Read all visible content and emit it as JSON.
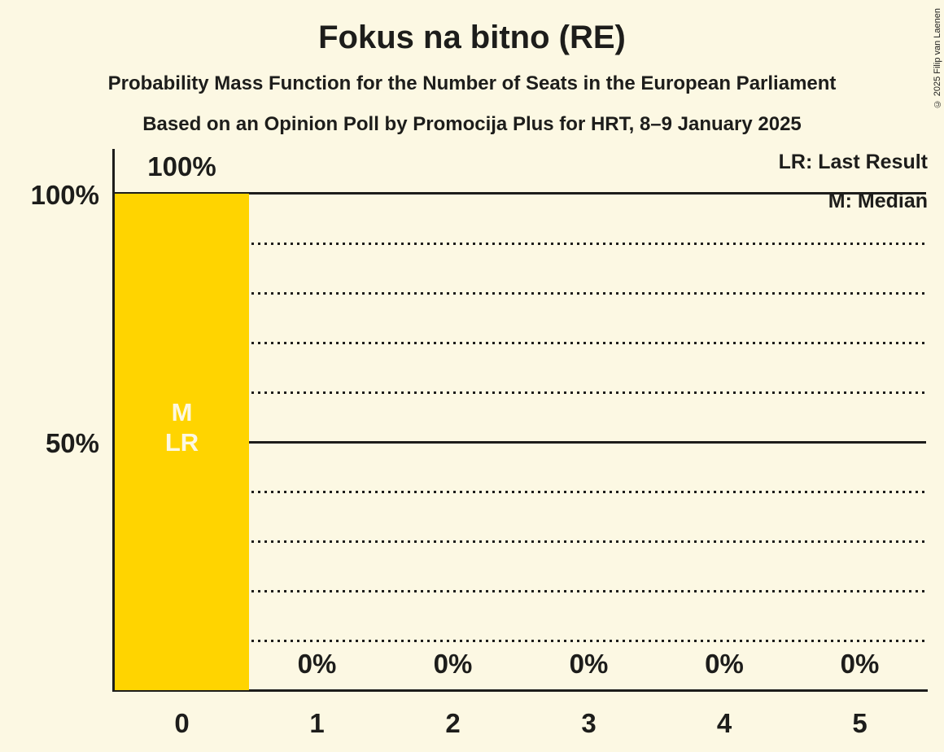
{
  "title": "Fokus na bitno (RE)",
  "subtitle1": "Probability Mass Function for the Number of Seats in the European Parliament",
  "subtitle2": "Based on an Opinion Poll by Promocija Plus for HRT, 8–9 January 2025",
  "copyright": "© 2025 Filip van Laenen",
  "legend": {
    "last_result": "LR: Last Result",
    "median": "M: Median"
  },
  "colors": {
    "background": "#FCF8E3",
    "bar": "#FFD400",
    "text": "#1D1D1B"
  },
  "chart_data": {
    "type": "bar",
    "title": "Fokus na bitno (RE)",
    "categories": [
      "0",
      "1",
      "2",
      "3",
      "4",
      "5"
    ],
    "values": [
      100,
      0,
      0,
      0,
      0,
      0
    ],
    "value_labels": [
      "100%",
      "0%",
      "0%",
      "0%",
      "0%",
      "0%"
    ],
    "xlabel": "",
    "ylabel": "",
    "ylim": [
      0,
      100
    ],
    "y_tick_labels": [
      "100%",
      "50%"
    ],
    "dotted_gridlines_pct": [
      90,
      80,
      70,
      60,
      40,
      30,
      20,
      10
    ],
    "solid_gridlines_pct": [
      100,
      50
    ],
    "median_seats": 0,
    "last_result_seats": 0,
    "median_label": "M",
    "last_result_label": "LR",
    "legend_position": "top-right",
    "bar_color": "#FFD400"
  }
}
